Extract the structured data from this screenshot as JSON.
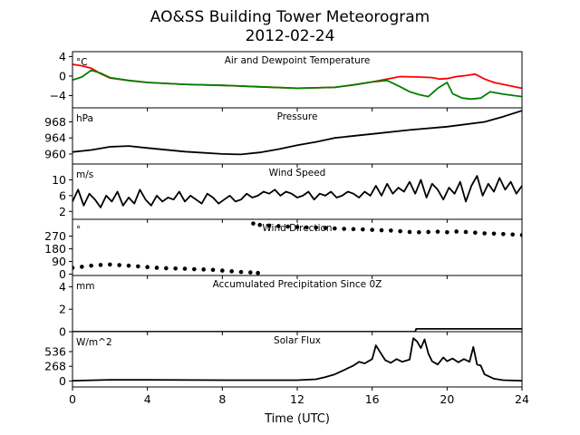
{
  "figure": {
    "title": "AO&SS Building Tower Meteorogram",
    "subtitle": "2012-02-24",
    "xlabel": "Time (UTC)"
  },
  "chart_data": [
    {
      "type": "line",
      "panel": "temperature",
      "title": "Air and Dewpoint Temperature",
      "unit_label": "°C",
      "xlim": [
        0,
        24
      ],
      "ylim": [
        -6.5,
        5
      ],
      "yticks": [
        4,
        0,
        -4
      ],
      "xticks": [
        0,
        4,
        8,
        12,
        16,
        20,
        24
      ],
      "series": [
        {
          "color": "#ff0000",
          "x": [
            0,
            0.5,
            1,
            1.5,
            2,
            3,
            4,
            6,
            8,
            10,
            12,
            14,
            15,
            16,
            16.8,
            17.5,
            18.5,
            19.2,
            19.6,
            20,
            20.5,
            21,
            21.5,
            22,
            22.5,
            23,
            24
          ],
          "y": [
            2.4,
            2.1,
            1.6,
            0.5,
            -0.4,
            -0.9,
            -1.3,
            -1.7,
            -1.9,
            -2.2,
            -2.5,
            -2.3,
            -1.8,
            -1.2,
            -0.6,
            -0.1,
            -0.2,
            -0.3,
            -0.6,
            -0.5,
            -0.1,
            0.1,
            0.4,
            -0.6,
            -1.3,
            -1.7,
            -2.5
          ]
        },
        {
          "color": "#008000",
          "x": [
            0,
            0.5,
            1,
            1.5,
            2,
            3,
            4,
            6,
            8,
            10,
            12,
            14,
            15,
            16,
            16.8,
            17.5,
            18,
            18.5,
            19,
            19.5,
            20,
            20.3,
            20.8,
            21.3,
            21.8,
            22.3,
            23,
            24
          ],
          "y": [
            -0.8,
            -0.2,
            1.2,
            0.6,
            -0.3,
            -0.9,
            -1.3,
            -1.7,
            -1.9,
            -2.2,
            -2.5,
            -2.3,
            -1.8,
            -1.2,
            -0.9,
            -2.2,
            -3.2,
            -3.8,
            -4.2,
            -2.5,
            -1.3,
            -3.6,
            -4.5,
            -4.7,
            -4.5,
            -3.2,
            -3.7,
            -4.2
          ]
        }
      ]
    },
    {
      "type": "line",
      "panel": "pressure",
      "title": "Pressure",
      "unit_label": "hPa",
      "xlim": [
        0,
        24
      ],
      "ylim": [
        957.5,
        971.5
      ],
      "yticks": [
        968,
        964,
        960
      ],
      "series": [
        {
          "color": "#000000",
          "x": [
            0,
            1,
            2,
            3,
            4,
            6,
            8,
            9,
            10,
            11,
            12,
            13,
            14,
            16,
            18,
            20,
            22,
            23,
            24
          ],
          "y": [
            960.5,
            961.0,
            961.8,
            962.0,
            961.5,
            960.6,
            960.0,
            959.9,
            960.4,
            961.2,
            962.2,
            963.0,
            964.0,
            965.0,
            966.0,
            966.8,
            968.0,
            969.3,
            970.8
          ]
        }
      ]
    },
    {
      "type": "line",
      "panel": "wind_speed",
      "title": "Wind Speed",
      "unit_label": "m/s",
      "xlim": [
        0,
        24
      ],
      "ylim": [
        0,
        14
      ],
      "yticks": [
        10,
        6,
        2
      ],
      "series": [
        {
          "color": "#000000",
          "x": [
            0,
            0.3,
            0.6,
            0.9,
            1.2,
            1.5,
            1.8,
            2.1,
            2.4,
            2.7,
            3.0,
            3.3,
            3.6,
            3.9,
            4.2,
            4.5,
            4.8,
            5.1,
            5.4,
            5.7,
            6.0,
            6.3,
            6.6,
            6.9,
            7.2,
            7.5,
            7.8,
            8.1,
            8.4,
            8.7,
            9.0,
            9.3,
            9.6,
            9.9,
            10.2,
            10.5,
            10.8,
            11.1,
            11.4,
            11.7,
            12.0,
            12.3,
            12.6,
            12.9,
            13.2,
            13.5,
            13.8,
            14.1,
            14.4,
            14.7,
            15.0,
            15.3,
            15.6,
            15.9,
            16.2,
            16.5,
            16.8,
            17.1,
            17.4,
            17.7,
            18.0,
            18.3,
            18.6,
            18.9,
            19.2,
            19.5,
            19.8,
            20.1,
            20.4,
            20.7,
            21.0,
            21.3,
            21.6,
            21.9,
            22.2,
            22.5,
            22.8,
            23.1,
            23.4,
            23.7,
            24.0
          ],
          "y": [
            4.5,
            7.5,
            3.5,
            6.5,
            5.0,
            3.0,
            6.0,
            4.5,
            7.0,
            3.5,
            5.5,
            4.0,
            7.5,
            5.0,
            3.5,
            6.0,
            4.5,
            5.5,
            5.0,
            7.0,
            4.5,
            6.0,
            5.0,
            4.0,
            6.5,
            5.5,
            4.0,
            5.0,
            6.0,
            4.5,
            5.0,
            6.5,
            5.5,
            6.0,
            7.0,
            6.5,
            7.5,
            6.0,
            7.0,
            6.5,
            5.5,
            6.0,
            7.0,
            5.0,
            6.5,
            6.0,
            7.0,
            5.5,
            6.0,
            7.0,
            6.5,
            5.5,
            7.0,
            6.0,
            8.5,
            6.0,
            9.0,
            6.5,
            8.0,
            7.0,
            9.5,
            6.5,
            10.0,
            5.5,
            9.0,
            7.5,
            5.0,
            8.0,
            6.5,
            9.5,
            4.5,
            8.5,
            11.0,
            6.0,
            9.0,
            7.0,
            10.5,
            7.5,
            9.5,
            6.5,
            8.5
          ]
        }
      ]
    },
    {
      "type": "scatter",
      "panel": "wind_direction",
      "title": "Wind Direction",
      "unit_label": "°",
      "xlim": [
        0,
        24
      ],
      "ylim": [
        -10,
        390
      ],
      "yticks": [
        270,
        180,
        90,
        0
      ],
      "series": [
        {
          "color": "#000000",
          "x": [
            0,
            0.5,
            1,
            1.5,
            2,
            2.5,
            3,
            3.5,
            4,
            4.5,
            5,
            5.5,
            6,
            6.5,
            7,
            7.5,
            8,
            8.5,
            9,
            9.5,
            9.9,
            9.65,
            10,
            10.5,
            11,
            11.5,
            12,
            12.5,
            13,
            13.5,
            14,
            14.5,
            15,
            15.5,
            16,
            16.5,
            17,
            17.5,
            18,
            18.5,
            19,
            19.5,
            20,
            20.5,
            21,
            21.5,
            22,
            22.5,
            23,
            23.5,
            24
          ],
          "y": [
            45,
            52,
            60,
            65,
            68,
            64,
            60,
            55,
            50,
            45,
            42,
            40,
            38,
            35,
            33,
            30,
            25,
            20,
            15,
            12,
            8,
            360,
            350,
            345,
            342,
            338,
            335,
            332,
            330,
            328,
            325,
            322,
            320,
            318,
            315,
            312,
            310,
            305,
            300,
            298,
            300,
            302,
            298,
            303,
            300,
            295,
            290,
            288,
            285,
            282,
            278
          ]
        }
      ]
    },
    {
      "type": "line",
      "panel": "precipitation",
      "title": "Accumulated Precipitation Since 0Z",
      "unit_label": "mm",
      "xlim": [
        0,
        24
      ],
      "ylim": [
        0,
        5
      ],
      "yticks": [
        4,
        2,
        0
      ],
      "series": [
        {
          "color": "#000000",
          "x": [
            0,
            18.3,
            18.35,
            24
          ],
          "y": [
            0,
            0,
            0.25,
            0.25
          ]
        }
      ]
    },
    {
      "type": "line",
      "panel": "solar_flux",
      "title": "Solar Flux",
      "unit_label": "W/m^2",
      "xlim": [
        0,
        24
      ],
      "ylim": [
        -110,
        900
      ],
      "yticks": [
        536,
        268,
        0
      ],
      "xticks": [
        0,
        4,
        8,
        12,
        16,
        20,
        24
      ],
      "series": [
        {
          "color": "#000000",
          "x": [
            0,
            2,
            4,
            8,
            12,
            13,
            13.5,
            14,
            14.5,
            15,
            15.3,
            15.6,
            16,
            16.2,
            16.4,
            16.7,
            17,
            17.3,
            17.6,
            18,
            18.2,
            18.4,
            18.6,
            18.8,
            19,
            19.2,
            19.5,
            19.8,
            20,
            20.3,
            20.6,
            20.9,
            21.2,
            21.4,
            21.6,
            21.8,
            22,
            22.5,
            23,
            24
          ],
          "y": [
            5,
            20,
            20,
            15,
            15,
            30,
            70,
            120,
            200,
            280,
            350,
            320,
            400,
            650,
            540,
            380,
            330,
            400,
            350,
            390,
            780,
            720,
            600,
            760,
            500,
            360,
            300,
            430,
            360,
            410,
            340,
            400,
            350,
            620,
            300,
            280,
            120,
            40,
            15,
            5
          ]
        }
      ]
    }
  ]
}
